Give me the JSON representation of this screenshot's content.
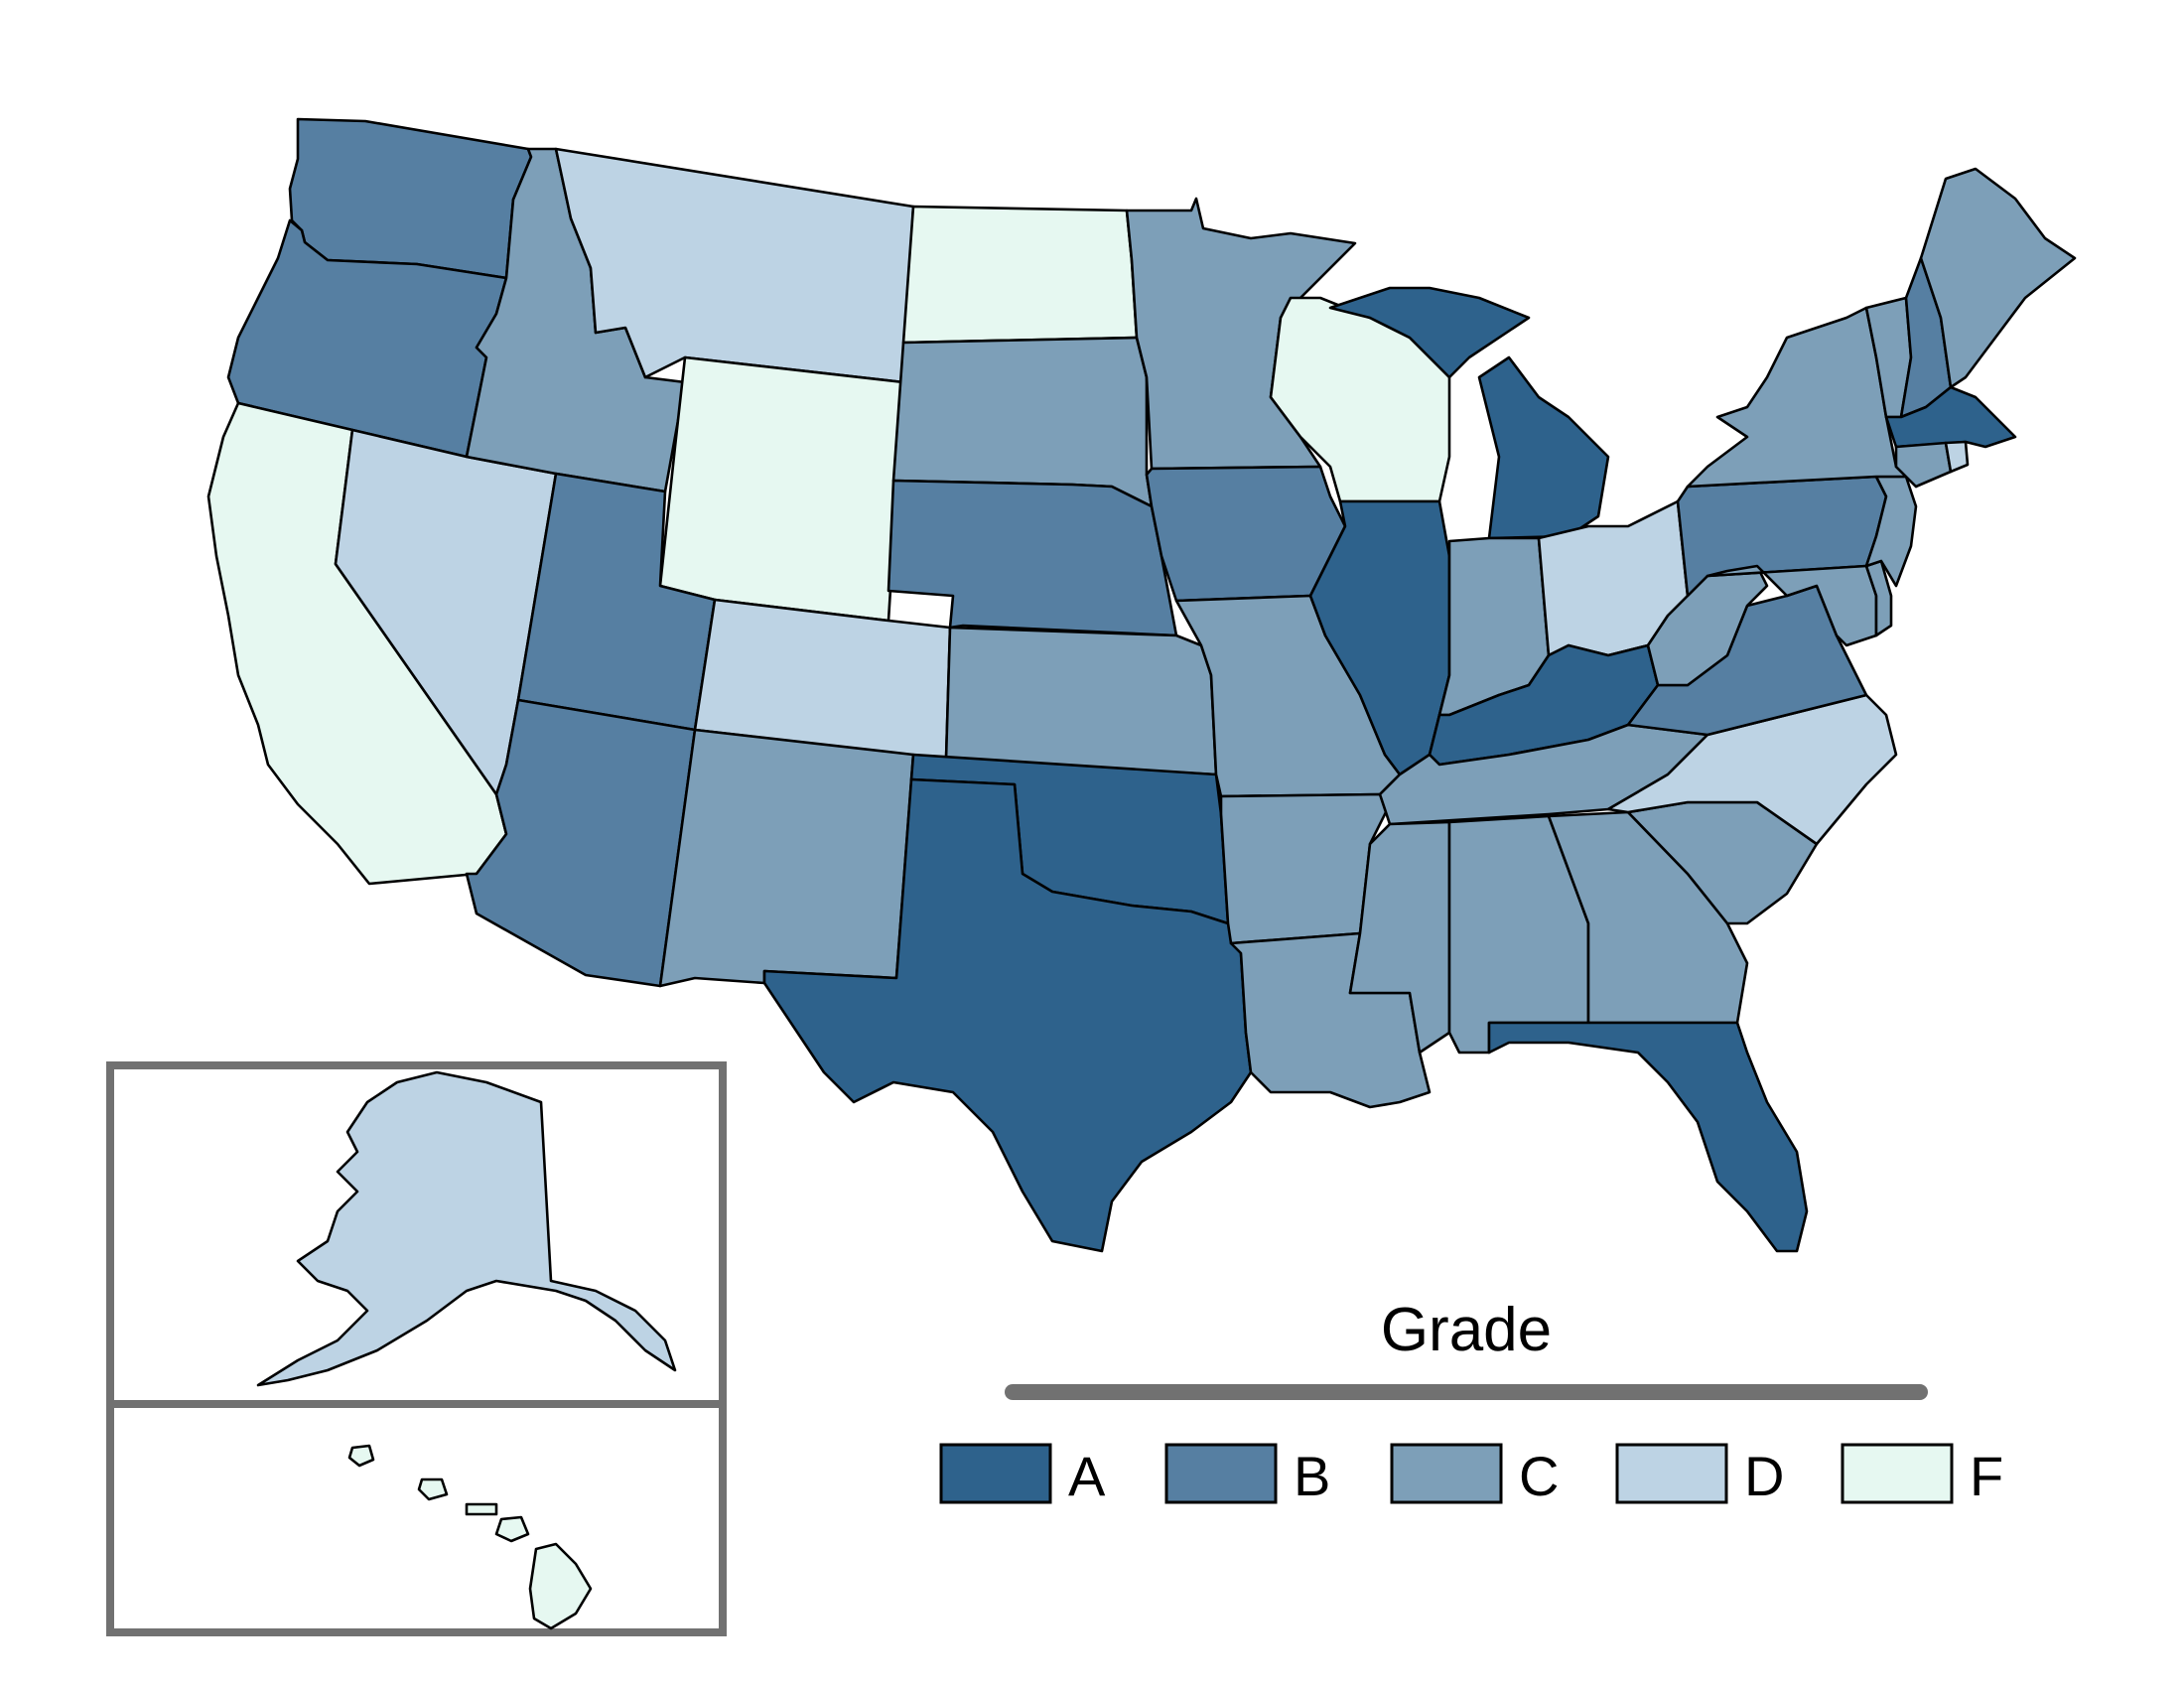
{
  "legend": {
    "title": "Grade",
    "items": [
      {
        "label": "A",
        "color": "#2e628c"
      },
      {
        "label": "B",
        "color": "#567fa2"
      },
      {
        "label": "C",
        "color": "#7d9fb8"
      },
      {
        "label": "D",
        "color": "#bdd3e4"
      },
      {
        "label": "F",
        "color": "#e6f8f1"
      }
    ]
  },
  "colors": {
    "outline": "#000000",
    "inset_frame": "#717171",
    "legend_bar": "#717171",
    "background": "#ffffff"
  },
  "states": [
    {
      "id": "WA",
      "grade": "B"
    },
    {
      "id": "OR",
      "grade": "B"
    },
    {
      "id": "CA",
      "grade": "F"
    },
    {
      "id": "NV",
      "grade": "D"
    },
    {
      "id": "ID",
      "grade": "C"
    },
    {
      "id": "MT",
      "grade": "D"
    },
    {
      "id": "WY",
      "grade": "F"
    },
    {
      "id": "UT",
      "grade": "B"
    },
    {
      "id": "AZ",
      "grade": "B"
    },
    {
      "id": "CO",
      "grade": "D"
    },
    {
      "id": "NM",
      "grade": "C"
    },
    {
      "id": "ND",
      "grade": "F"
    },
    {
      "id": "SD",
      "grade": "C"
    },
    {
      "id": "NE",
      "grade": "B"
    },
    {
      "id": "KS",
      "grade": "C"
    },
    {
      "id": "OK",
      "grade": "A"
    },
    {
      "id": "TX",
      "grade": "A"
    },
    {
      "id": "MN",
      "grade": "C"
    },
    {
      "id": "IA",
      "grade": "B"
    },
    {
      "id": "MO",
      "grade": "C"
    },
    {
      "id": "AR",
      "grade": "C"
    },
    {
      "id": "LA",
      "grade": "C"
    },
    {
      "id": "WI",
      "grade": "F"
    },
    {
      "id": "IL",
      "grade": "A"
    },
    {
      "id": "MI",
      "grade": "A"
    },
    {
      "id": "IN",
      "grade": "C"
    },
    {
      "id": "OH",
      "grade": "D"
    },
    {
      "id": "KY",
      "grade": "A"
    },
    {
      "id": "TN",
      "grade": "C"
    },
    {
      "id": "MS",
      "grade": "C"
    },
    {
      "id": "AL",
      "grade": "C"
    },
    {
      "id": "GA",
      "grade": "C"
    },
    {
      "id": "FL",
      "grade": "A"
    },
    {
      "id": "SC",
      "grade": "C"
    },
    {
      "id": "NC",
      "grade": "D"
    },
    {
      "id": "VA",
      "grade": "B"
    },
    {
      "id": "WV",
      "grade": "C"
    },
    {
      "id": "PA",
      "grade": "B"
    },
    {
      "id": "NY",
      "grade": "C"
    },
    {
      "id": "VT",
      "grade": "C"
    },
    {
      "id": "NH",
      "grade": "B"
    },
    {
      "id": "ME",
      "grade": "C"
    },
    {
      "id": "MA",
      "grade": "A"
    },
    {
      "id": "CT",
      "grade": "C"
    },
    {
      "id": "RI",
      "grade": "D"
    },
    {
      "id": "NJ",
      "grade": "C"
    },
    {
      "id": "DE",
      "grade": "C"
    },
    {
      "id": "MD",
      "grade": "C"
    },
    {
      "id": "AK",
      "grade": "D"
    },
    {
      "id": "HI",
      "grade": "F"
    }
  ]
}
